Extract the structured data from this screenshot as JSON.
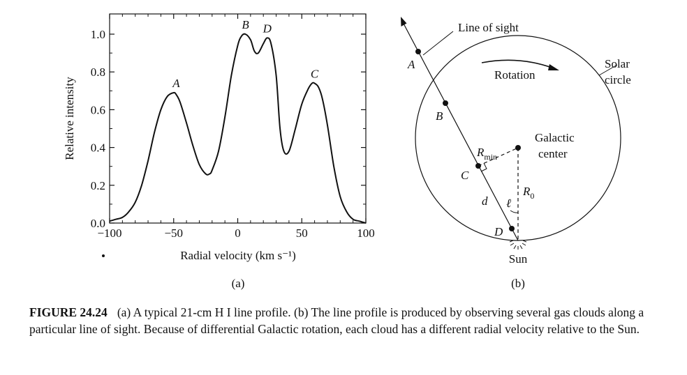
{
  "figure_label": "FIGURE 24.24",
  "caption_text": "(a) A typical 21-cm H I line profile. (b) The line profile is produced by observing several gas clouds along a particular line of sight. Because of differential Galactic rotation, each cloud has a different radial velocity relative to the Sun.",
  "panel_a": {
    "label": "(a)",
    "ylabel": "Relative intensity",
    "xlabel": "Radial velocity (km s⁻¹)",
    "peak_labels": [
      {
        "text": "A",
        "x": -48,
        "y": 0.69
      },
      {
        "text": "B",
        "x": 6,
        "y": 1.0
      },
      {
        "text": "D",
        "x": 23,
        "y": 0.98
      },
      {
        "text": "C",
        "x": 60,
        "y": 0.74
      }
    ]
  },
  "panel_b": {
    "label": "(b)",
    "line_of_sight": "Line of sight",
    "rotation": "Rotation",
    "solar_circle_1": "Solar",
    "solar_circle_2": "circle",
    "galactic_1": "Galactic",
    "galactic_2": "center",
    "sun": "Sun",
    "point_A": "A",
    "point_B": "B",
    "point_C": "C",
    "point_D": "D",
    "d": "d",
    "l": "ℓ",
    "rmin_main": "R",
    "rmin_sub": "min",
    "r0_main": "R",
    "r0_sub": "0"
  },
  "chart_data": {
    "type": "line",
    "xlabel": "Radial velocity (km s⁻¹)",
    "ylabel": "Relative intensity",
    "xlim": [
      -100,
      100
    ],
    "ylim": [
      0.0,
      1.0
    ],
    "xticks": [
      -100,
      -50,
      0,
      50,
      100
    ],
    "yticks": [
      0.0,
      0.2,
      0.4,
      0.6,
      0.8,
      1.0
    ],
    "xtick_labels": [
      "−100",
      "−50",
      "0",
      "50",
      "100"
    ],
    "ytick_labels": [
      "0.0",
      "0.2",
      "0.4",
      "0.6",
      "0.8",
      "1.0"
    ],
    "series": [
      {
        "x": [
          -100,
          -95,
          -90,
          -85,
          -80,
          -75,
          -70,
          -65,
          -60,
          -55,
          -50,
          -48,
          -45,
          -40,
          -35,
          -30,
          -25,
          -22,
          -20,
          -15,
          -10,
          -5,
          0,
          3,
          6,
          10,
          13,
          16,
          20,
          23,
          26,
          30,
          33,
          36,
          40,
          45,
          50,
          55,
          58,
          60,
          63,
          66,
          70,
          75,
          80,
          85,
          90,
          95,
          100
        ],
        "y": [
          0.01,
          0.02,
          0.03,
          0.06,
          0.11,
          0.2,
          0.33,
          0.48,
          0.6,
          0.67,
          0.69,
          0.68,
          0.64,
          0.53,
          0.41,
          0.31,
          0.26,
          0.26,
          0.28,
          0.38,
          0.56,
          0.78,
          0.94,
          0.99,
          1.0,
          0.97,
          0.91,
          0.9,
          0.95,
          0.98,
          0.95,
          0.78,
          0.5,
          0.38,
          0.38,
          0.5,
          0.63,
          0.71,
          0.74,
          0.74,
          0.72,
          0.66,
          0.52,
          0.3,
          0.14,
          0.06,
          0.02,
          0.01,
          0.0
        ]
      }
    ],
    "grid": false,
    "legend": "none"
  }
}
